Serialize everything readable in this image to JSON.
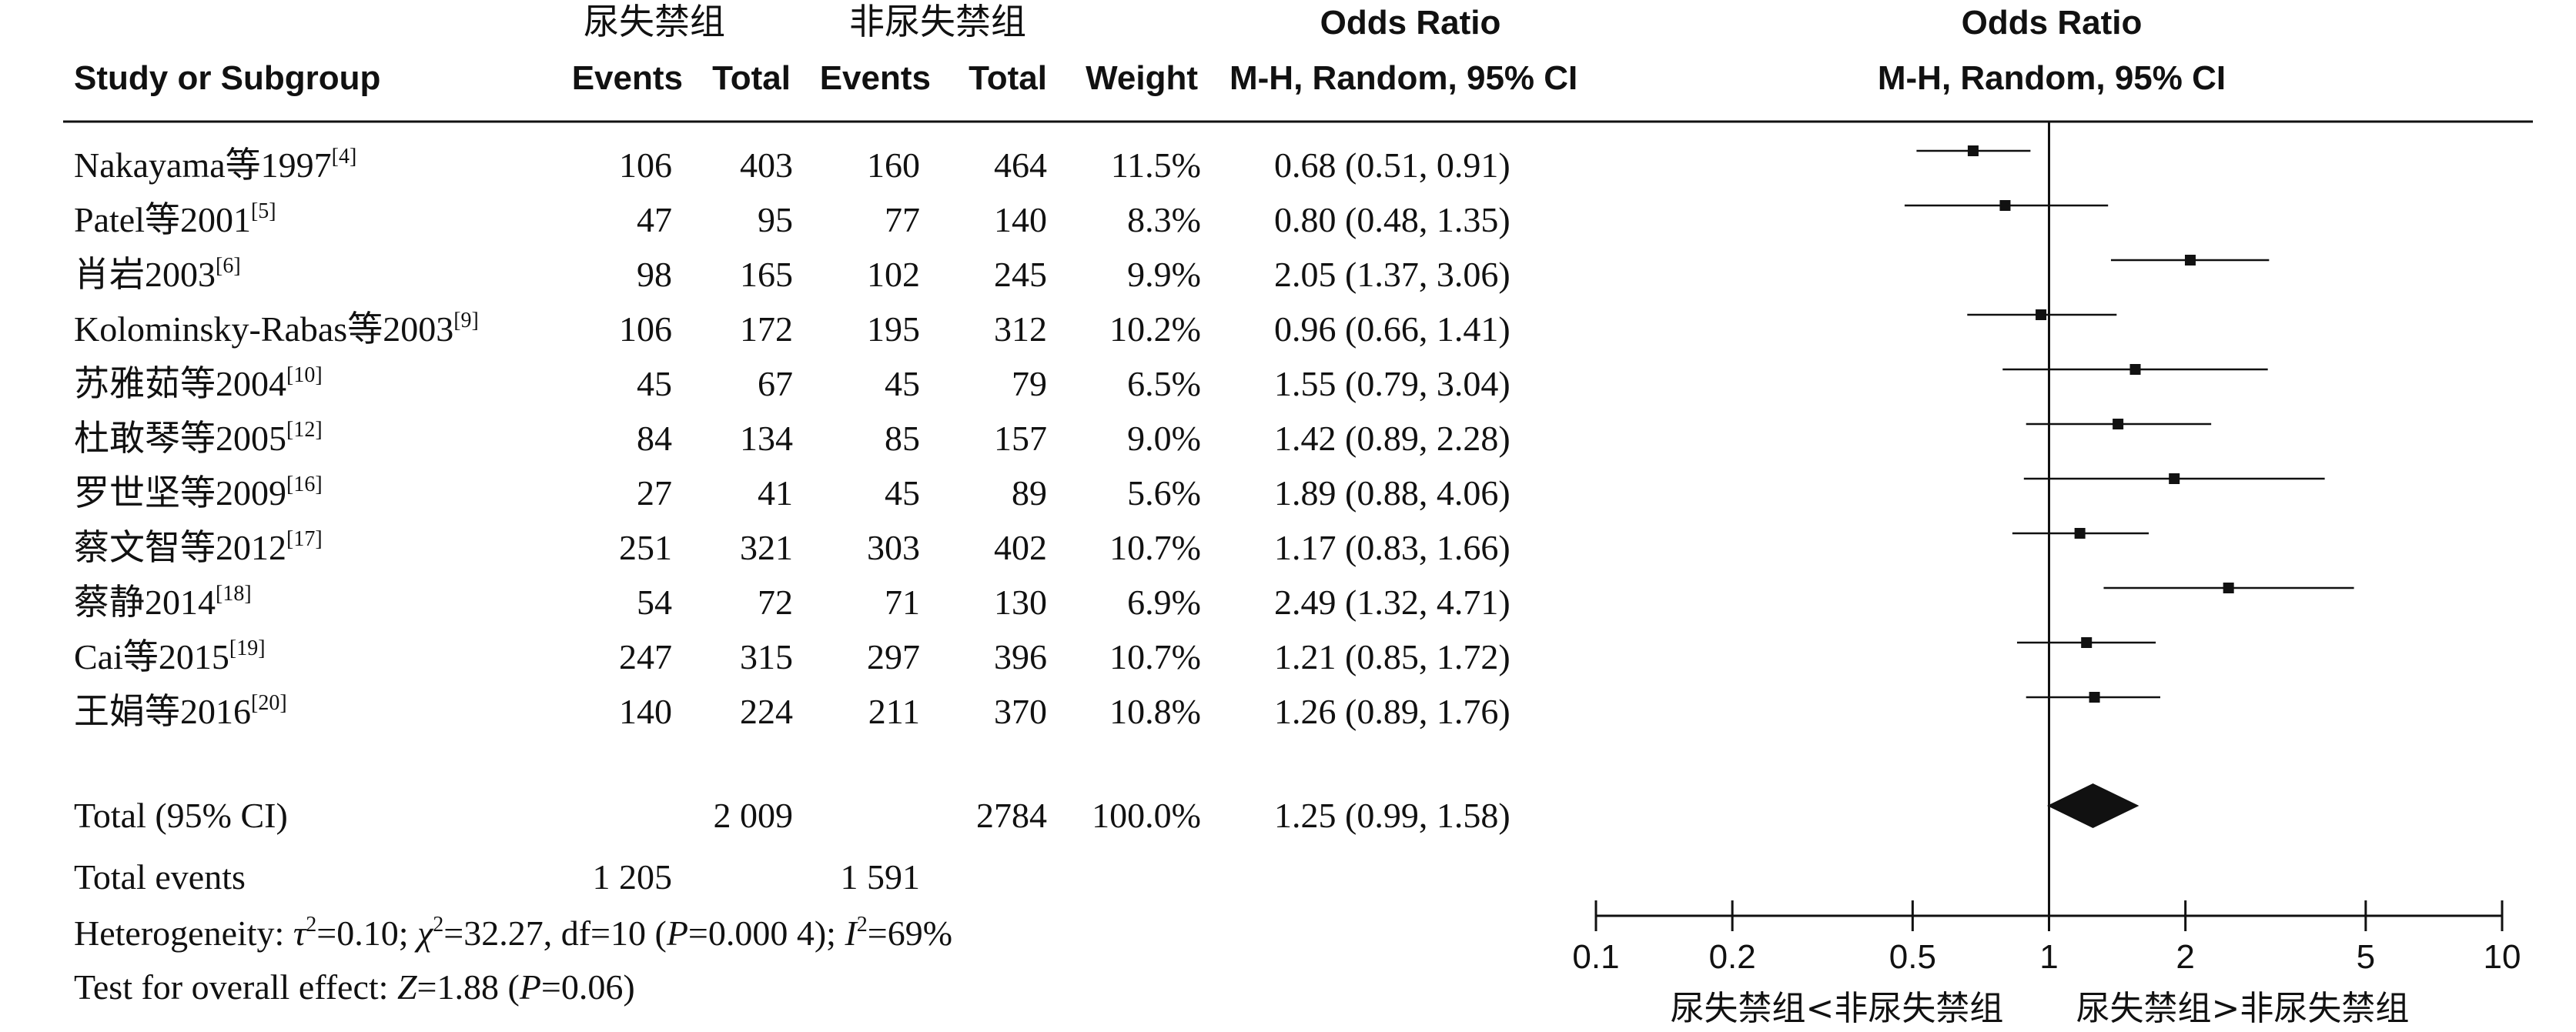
{
  "header": {
    "group1": "尿失禁组",
    "group2": "非尿失禁组",
    "study": "Study or Subgroup",
    "events": "Events",
    "total": "Total",
    "weight": "Weight",
    "or_title": "Odds Ratio",
    "or_method": "M-H, Random, 95% CI",
    "plot_title": "Odds Ratio",
    "plot_method": "M-H, Random, 95% CI"
  },
  "studies": [
    {
      "name": "Nakayama等1997",
      "ref": "[4]",
      "e1": "106",
      "t1": "403",
      "e2": "160",
      "t2": "464",
      "weight": "11.5%",
      "ci": "0.68 (0.51, 0.91)"
    },
    {
      "name": "Patel等2001",
      "ref": "[5]",
      "e1": "47",
      "t1": "95",
      "e2": "77",
      "t2": "140",
      "weight": "8.3%",
      "ci": "0.80 (0.48, 1.35)"
    },
    {
      "name": "肖岩2003",
      "ref": "[6]",
      "e1": "98",
      "t1": "165",
      "e2": "102",
      "t2": "245",
      "weight": "9.9%",
      "ci": "2.05 (1.37, 3.06)"
    },
    {
      "name": "Kolominsky-Rabas等2003",
      "ref": "[9]",
      "e1": "106",
      "t1": "172",
      "e2": "195",
      "t2": "312",
      "weight": "10.2%",
      "ci": "0.96 (0.66, 1.41)"
    },
    {
      "name": "苏雅茹等2004",
      "ref": "[10]",
      "e1": "45",
      "t1": "67",
      "e2": "45",
      "t2": "79",
      "weight": "6.5%",
      "ci": "1.55 (0.79, 3.04)"
    },
    {
      "name": "杜敢琴等2005",
      "ref": "[12]",
      "e1": "84",
      "t1": "134",
      "e2": "85",
      "t2": "157",
      "weight": "9.0%",
      "ci": "1.42 (0.89, 2.28)"
    },
    {
      "name": "罗世坚等2009",
      "ref": "[16]",
      "e1": "27",
      "t1": "41",
      "e2": "45",
      "t2": "89",
      "weight": "5.6%",
      "ci": "1.89 (0.88, 4.06)"
    },
    {
      "name": "蔡文智等2012",
      "ref": "[17]",
      "e1": "251",
      "t1": "321",
      "e2": "303",
      "t2": "402",
      "weight": "10.7%",
      "ci": "1.17 (0.83, 1.66)"
    },
    {
      "name": "蔡静2014",
      "ref": "[18]",
      "e1": "54",
      "t1": "72",
      "e2": "71",
      "t2": "130",
      "weight": "6.9%",
      "ci": "2.49 (1.32, 4.71)"
    },
    {
      "name": "Cai等2015",
      "ref": "[19]",
      "e1": "247",
      "t1": "315",
      "e2": "297",
      "t2": "396",
      "weight": "10.7%",
      "ci": "1.21 (0.85, 1.72)"
    },
    {
      "name": "王娟等2016",
      "ref": "[20]",
      "e1": "140",
      "t1": "224",
      "e2": "211",
      "t2": "370",
      "weight": "10.8%",
      "ci": "1.26 (0.89, 1.76)"
    }
  ],
  "total_row": {
    "label": "Total (95% CI)",
    "t1": "2 009",
    "t2": "2784",
    "weight": "100.0%",
    "ci": "1.25 (0.99, 1.58)"
  },
  "total_events": {
    "label": "Total events",
    "e1": "1 205",
    "e2": "1 591"
  },
  "heterogeneity": {
    "label": "Heterogeneity: ",
    "tau_sym": "τ",
    "tau_val": "=0.10; ",
    "chi_sym": "χ",
    "chi_val": "=32.27, df=10 (",
    "p_sym": "P",
    "p_val": "=0.000 4); ",
    "i_sym": "I",
    "i_val": "=69%",
    "sq": "2"
  },
  "overall_effect": {
    "label": "Test for overall effect: ",
    "z_sym": "Z",
    "z_val": "=1.88 (",
    "p_sym": "P",
    "p_val": "=0.06)"
  },
  "chart_data": {
    "type": "forest",
    "scale": "log",
    "xlim": [
      0.1,
      10
    ],
    "ticks": [
      {
        "value": 0.1,
        "label": "0.1"
      },
      {
        "value": 0.2,
        "label": "0.2"
      },
      {
        "value": 0.5,
        "label": "0.5"
      },
      {
        "value": 1,
        "label": "1"
      },
      {
        "value": 2,
        "label": "2"
      },
      {
        "value": 5,
        "label": "5"
      },
      {
        "value": 10,
        "label": "10"
      }
    ],
    "favours_left": "尿失禁组<非尿失禁组",
    "favours_right": "尿失禁组>非尿失禁组",
    "points": [
      {
        "or": 0.68,
        "lo": 0.51,
        "hi": 0.91
      },
      {
        "or": 0.8,
        "lo": 0.48,
        "hi": 1.35
      },
      {
        "or": 2.05,
        "lo": 1.37,
        "hi": 3.06
      },
      {
        "or": 0.96,
        "lo": 0.66,
        "hi": 1.41
      },
      {
        "or": 1.55,
        "lo": 0.79,
        "hi": 3.04
      },
      {
        "or": 1.42,
        "lo": 0.89,
        "hi": 2.28
      },
      {
        "or": 1.89,
        "lo": 0.88,
        "hi": 4.06
      },
      {
        "or": 1.17,
        "lo": 0.83,
        "hi": 1.66
      },
      {
        "or": 2.49,
        "lo": 1.32,
        "hi": 4.71
      },
      {
        "or": 1.21,
        "lo": 0.85,
        "hi": 1.72
      },
      {
        "or": 1.26,
        "lo": 0.89,
        "hi": 1.76
      }
    ],
    "pooled": {
      "or": 1.25,
      "lo": 0.99,
      "hi": 1.58
    }
  }
}
